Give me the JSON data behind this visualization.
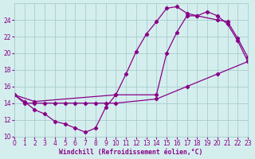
{
  "xlabel": "Windchill (Refroidissement éolien,°C)",
  "bg_color": "#d4eeee",
  "grid_color": "#aacccc",
  "line_color": "#880088",
  "ylim": [
    10,
    26
  ],
  "xlim": [
    0,
    23
  ],
  "yticks": [
    10,
    12,
    14,
    16,
    18,
    20,
    22,
    24
  ],
  "xticks": [
    0,
    1,
    2,
    3,
    4,
    5,
    6,
    7,
    8,
    9,
    10,
    11,
    12,
    13,
    14,
    15,
    16,
    17,
    18,
    19,
    20,
    21,
    22,
    23
  ],
  "line1_x": [
    0,
    1,
    2,
    3,
    4,
    5,
    6,
    7,
    8,
    9,
    10,
    11,
    12,
    13,
    14,
    15,
    16,
    17,
    18,
    19,
    20,
    21,
    22,
    23
  ],
  "line1_y": [
    15.0,
    14.2,
    13.2,
    12.7,
    11.8,
    11.5,
    11.0,
    10.5,
    11.0,
    13.5,
    15.0,
    17.5,
    20.2,
    22.3,
    23.8,
    25.4,
    25.6,
    24.8,
    24.5,
    25.0,
    24.5,
    23.5,
    21.5,
    19.0
  ],
  "line2_x": [
    0,
    1,
    2,
    3,
    4,
    5,
    6,
    7,
    8,
    9,
    10,
    14,
    17,
    20,
    23
  ],
  "line2_y": [
    15.0,
    14.0,
    14.0,
    14.0,
    14.0,
    14.0,
    14.0,
    14.0,
    14.0,
    14.0,
    14.0,
    14.5,
    16.0,
    17.5,
    19.0
  ],
  "line3_x": [
    0,
    2,
    10,
    14,
    15,
    16,
    17,
    18,
    20,
    21,
    22,
    23
  ],
  "line3_y": [
    15.0,
    14.2,
    15.0,
    15.0,
    20.0,
    22.5,
    24.5,
    24.5,
    24.0,
    23.8,
    21.8,
    19.5
  ]
}
